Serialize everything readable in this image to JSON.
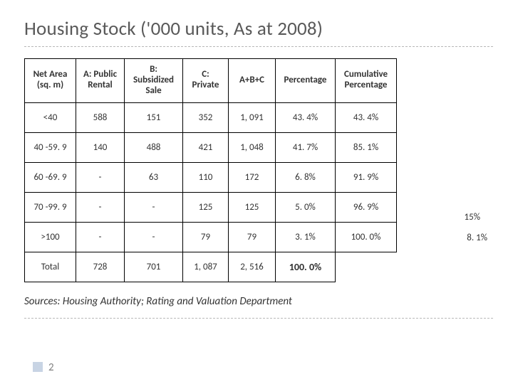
{
  "title": "Housing Stock ('000 units, As at 2008)",
  "table": {
    "columns": [
      "Net Area\n(sq. m)",
      "A: Public\nRental",
      "B:\nSubsidized\nSale",
      "C:\nPrivate",
      "A+B+C",
      "Percentage",
      "Cumulative\nPercentage"
    ],
    "rows": [
      [
        "<40",
        "588",
        "151",
        "352",
        "1, 091",
        "43. 4%",
        "43. 4%"
      ],
      [
        "40 -59. 9",
        "140",
        "488",
        "421",
        "1, 048",
        "41. 7%",
        "85. 1%"
      ],
      [
        "60 -69. 9",
        "-",
        "63",
        "110",
        "172",
        "6. 8%",
        "91. 9%"
      ],
      [
        "70 -99. 9",
        "-",
        "-",
        "125",
        "125",
        "5. 0%",
        "96. 9%"
      ],
      [
        ">100",
        "-",
        "-",
        "79",
        "79",
        "3. 1%",
        "100. 0%"
      ],
      [
        "Total",
        "728",
        "701",
        "1, 087",
        "2, 516",
        "100. 0%",
        ""
      ]
    ]
  },
  "annotations": {
    "label1": "15%",
    "label2": "8. 1%"
  },
  "sources": "Sources: Housing Authority; Rating and Valuation Department",
  "page_number": "2",
  "colors": {
    "text": "#333333",
    "title": "#595959",
    "border": "#000000",
    "dashed": "#b8b8b8",
    "pagenum_badge": "#c8d4e4"
  }
}
